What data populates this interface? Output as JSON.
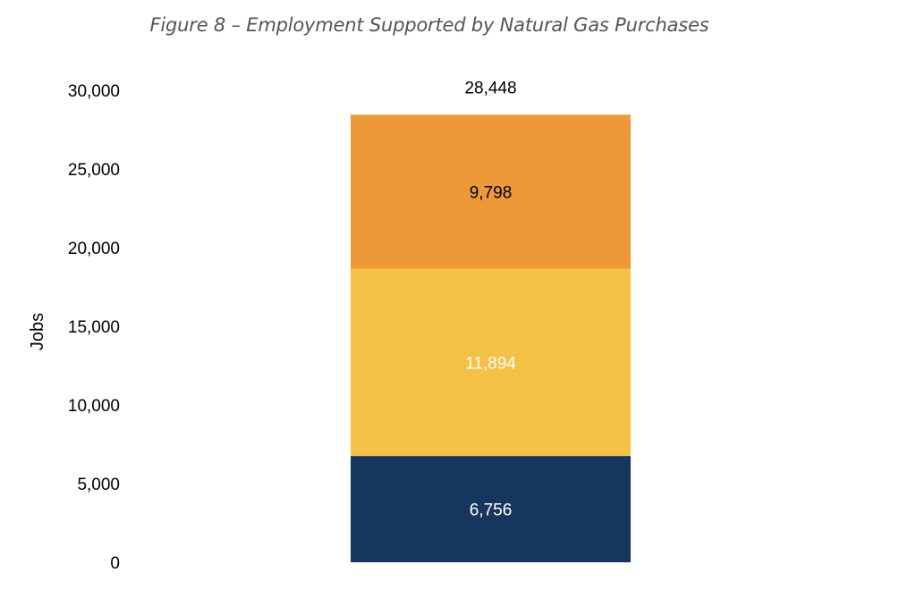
{
  "chart_data": {
    "type": "bar",
    "stacked": true,
    "title": "Figure 8 – Employment Supported by Natural Gas Purchases",
    "ylabel": "Jobs",
    "xlabel": "",
    "ylim": [
      0,
      30000
    ],
    "yticks": [
      0,
      5000,
      10000,
      15000,
      20000,
      25000,
      30000
    ],
    "ytick_labels": [
      "0",
      "5,000",
      "10,000",
      "15,000",
      "20,000",
      "25,000",
      "30,000"
    ],
    "grid": false,
    "legend": "none",
    "categories": [
      ""
    ],
    "series": [
      {
        "values": [
          6756
        ],
        "color": "#17365d",
        "label_color": "#ffffff",
        "label": "6,756"
      },
      {
        "values": [
          11894
        ],
        "color": "#f4c145",
        "label_color": "#ffffff",
        "label": "11,894"
      },
      {
        "values": [
          9798
        ],
        "color": "#ee9937",
        "label_color": "#000000",
        "label": "9,798"
      }
    ],
    "total": 28448,
    "total_label": "28,448"
  }
}
